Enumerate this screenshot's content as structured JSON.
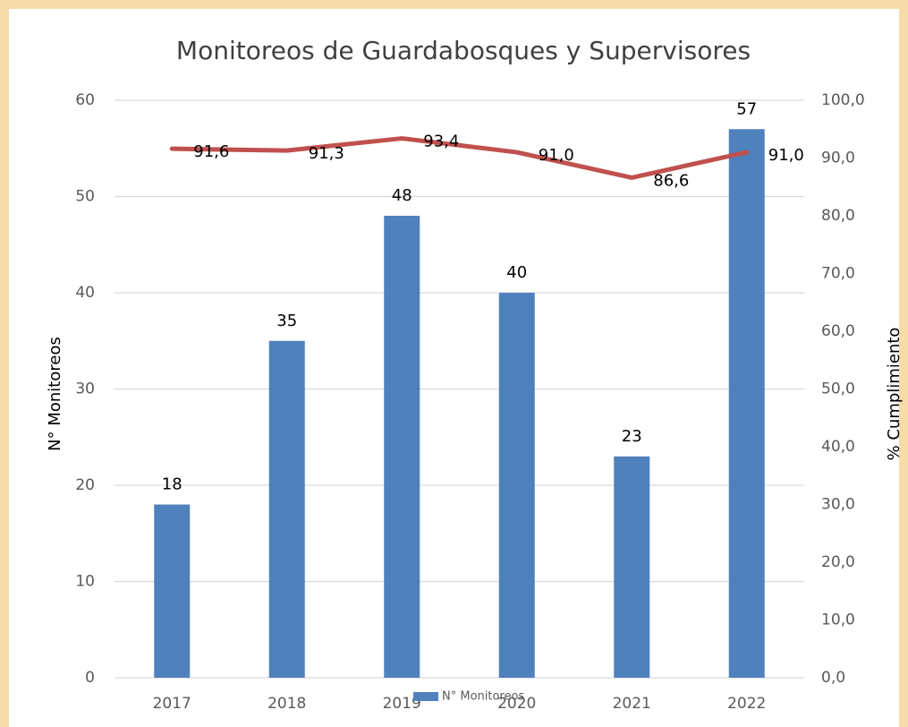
{
  "chart_data": {
    "type": "bar_line",
    "title": "Monitoreos de Guardabosques y Supervisores",
    "y_label": "N° Monitoreos",
    "y2_label": "% Cumplimiento",
    "categories": [
      "2017",
      "2018",
      "2019",
      "2020",
      "2021",
      "2022"
    ],
    "series": [
      {
        "name": "N° Monitoreos",
        "type": "bar",
        "color": "#4f81bd",
        "values": [
          18,
          35,
          48,
          40,
          23,
          57
        ]
      },
      {
        "type": "line",
        "axis": "y2",
        "color": "#c0504d",
        "values": [
          91.6,
          91.3,
          93.4,
          91.0,
          86.6,
          91.0
        ],
        "value_labels": [
          "91,6",
          "91,3",
          "93,4",
          "91,0",
          "86,6",
          "91,0"
        ]
      }
    ],
    "ylim": [
      0,
      60
    ],
    "yticks": [
      0,
      10,
      20,
      30,
      40,
      50,
      60
    ],
    "y2lim": [
      0,
      100
    ],
    "y2ticks": [
      {
        "value": 0,
        "label": "0,0"
      },
      {
        "value": 10,
        "label": "10,0"
      },
      {
        "value": 20,
        "label": "20,0"
      },
      {
        "value": 30,
        "label": "30,0"
      },
      {
        "value": 40,
        "label": "40,0"
      },
      {
        "value": 50,
        "label": "50,0"
      },
      {
        "value": 60,
        "label": "60,0"
      },
      {
        "value": 70,
        "label": "70,0"
      },
      {
        "value": 80,
        "label": "80,0"
      },
      {
        "value": 90,
        "label": "90,0"
      },
      {
        "value": 100,
        "label": "100,0"
      }
    ],
    "grid": true,
    "legend": "bottom"
  }
}
